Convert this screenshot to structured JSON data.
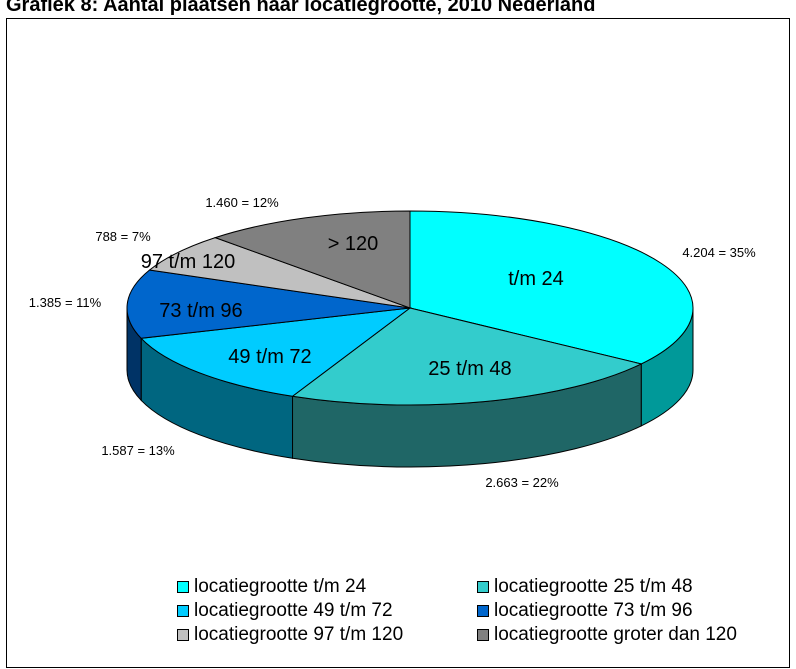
{
  "chart_data": {
    "type": "pie",
    "title": "Grafiek 8: Aantal plaatsen naar locatiegrootte, 2010 Nederland",
    "slices": [
      {
        "label": "t/m 24",
        "legend": "locatiegrootte t/m 24",
        "value": 4204,
        "value_label": "4.204 = 35%",
        "color": "#00ffff",
        "side_color": "#009999"
      },
      {
        "label": "25 t/m 48",
        "legend": "locatiegrootte 25 t/m 48",
        "value": 2663,
        "value_label": "2.663 = 22%",
        "color": "#33cccc",
        "side_color": "#1f6666"
      },
      {
        "label": "49 t/m 72",
        "legend": "locatiegrootte 49 t/m 72",
        "value": 1587,
        "value_label": "1.587 = 13%",
        "color": "#00ccff",
        "side_color": "#006680"
      },
      {
        "label": "73 t/m 96",
        "legend": "locatiegrootte 73 t/m 96",
        "value": 1385,
        "value_label": "1.385 = 11%",
        "color": "#0066cc",
        "side_color": "#003366"
      },
      {
        "label": "97 t/m 120",
        "legend": "locatiegrootte 97 t/m 120",
        "value": 788,
        "value_label": "788 = 7%",
        "color": "#c0c0c0",
        "side_color": "#606060"
      },
      {
        "label": "> 120",
        "legend": "locatiegrootte groter dan 120",
        "value": 1460,
        "value_label": "1.460 = 12%",
        "color": "#808080",
        "side_color": "#404040"
      }
    ]
  }
}
